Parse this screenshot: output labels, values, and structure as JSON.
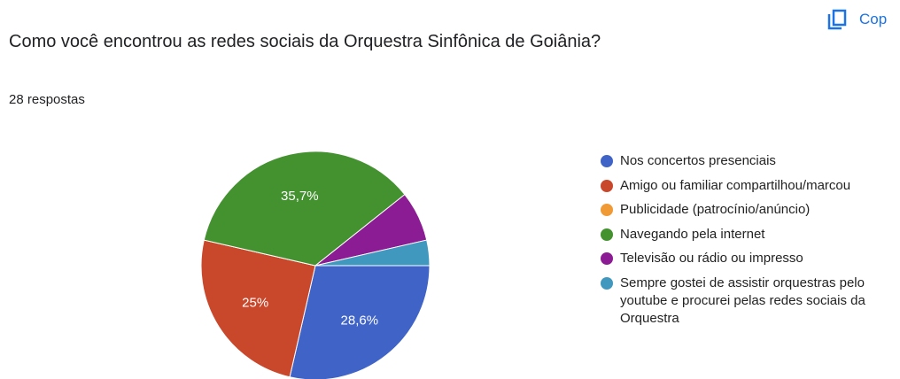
{
  "copy_button": "Cop",
  "chart_data": {
    "type": "pie",
    "title": "Como você encontrou as redes sociais da Orquestra Sinfônica de Goiânia?",
    "subtitle": "28 respostas",
    "categories": [
      "Nos concertos presenciais",
      "Amigo ou familiar compartilhou/marcou",
      "Publicidade (patrocínio/anúncio)",
      "Navegando pela internet",
      "Televisão ou rádio ou impresso",
      "Sempre gostei de assistir orquestras pelo youtube e procurei pelas redes sociais da Orquestra"
    ],
    "values": [
      28.6,
      25,
      0,
      35.7,
      7.1,
      3.6
    ],
    "value_labels": [
      "28,6%",
      "25%",
      null,
      "35,7%",
      null,
      null
    ],
    "colors": [
      "#3f63c6",
      "#c9472a",
      "#f09a36",
      "#43922f",
      "#8c1c93",
      "#4098be"
    ],
    "legend": "right"
  }
}
